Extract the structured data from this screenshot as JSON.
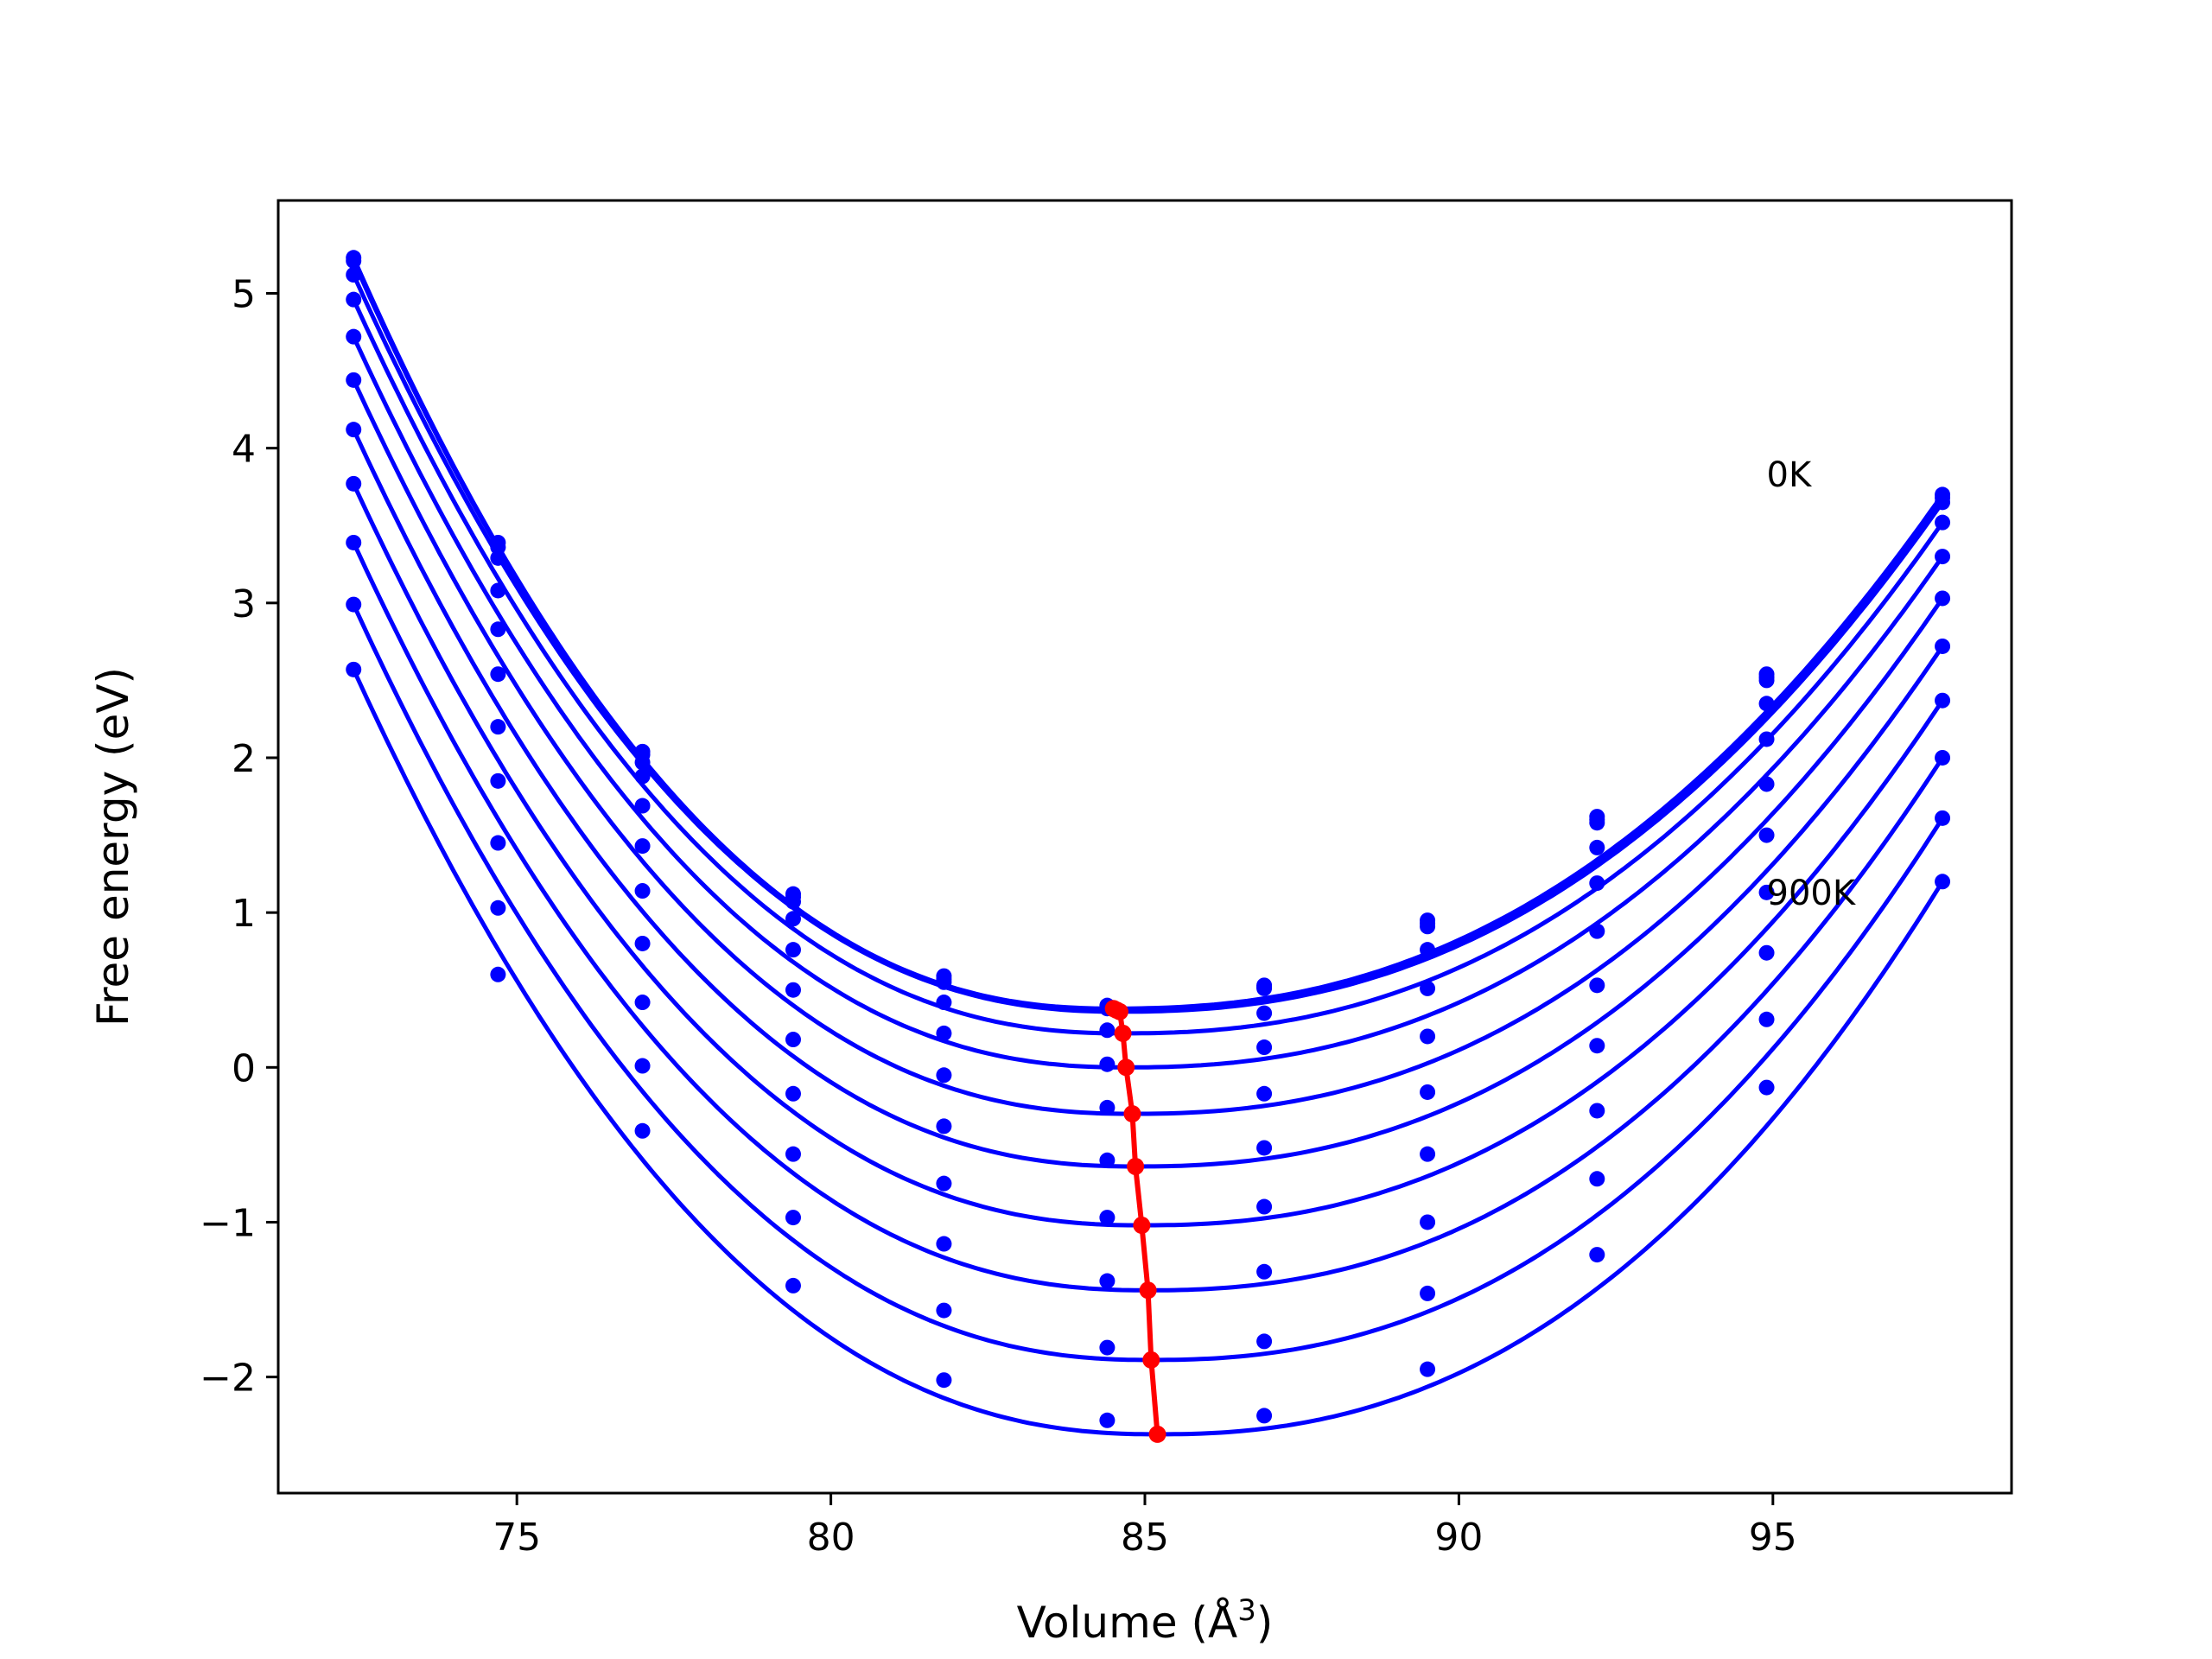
{
  "chart_data": {
    "type": "line",
    "xlabel": "Volume (Å",
    "xlabel_sup": "3",
    "xlabel_end": ")",
    "ylabel": "Free energy (eV)",
    "xlim": [
      71.2,
      98.8
    ],
    "ylim": [
      -2.75,
      5.6
    ],
    "x_ticks": [
      75,
      80,
      85,
      90,
      95
    ],
    "y_ticks": [
      5,
      4,
      3,
      2,
      1,
      0,
      -1,
      -2
    ],
    "y_tick_labels": [
      "5",
      "4",
      "3",
      "2",
      "1",
      "0",
      "−1",
      "−2"
    ],
    "annotations": [
      {
        "text": "0K",
        "x": 94.9,
        "y": 3.83
      },
      {
        "text": "900K",
        "x": 94.9,
        "y": 1.13
      }
    ],
    "volumes": [
      72.4,
      74.7,
      77.0,
      79.4,
      81.8,
      84.4,
      86.9,
      89.5,
      92.2,
      94.9,
      97.7
    ],
    "series": [
      {
        "v0": 84.5,
        "fmin": 0.38,
        "f_low": 5.23,
        "f_high": 3.7,
        "points": [
          5.23,
          3.39,
          2.04,
          1.12,
          0.59,
          0.4,
          0.53,
          0.95,
          1.62,
          2.54,
          3.7
        ]
      },
      {
        "v0": 84.55,
        "fmin": 0.37,
        "f_low": 5.21,
        "f_high": 3.68,
        "points": [
          5.21,
          3.36,
          2.02,
          1.1,
          0.57,
          0.39,
          0.52,
          0.93,
          1.6,
          2.52,
          3.68
        ]
      },
      {
        "v0": 84.6,
        "fmin": 0.36,
        "f_low": 5.12,
        "f_high": 3.65,
        "points": [
          5.12,
          3.29,
          1.97,
          1.07,
          0.55,
          0.38,
          0.51,
          0.91,
          1.58,
          2.5,
          3.65
        ]
      },
      {
        "v0": 84.65,
        "fmin": 0.22,
        "f_low": 4.96,
        "f_high": 3.52,
        "points": [
          4.96,
          3.08,
          1.88,
          0.96,
          0.42,
          0.24,
          0.35,
          0.76,
          1.42,
          2.35,
          3.52
        ]
      },
      {
        "v0": 84.7,
        "fmin": 0.0,
        "f_low": 4.72,
        "f_high": 3.3,
        "points": [
          4.72,
          2.83,
          1.69,
          0.76,
          0.22,
          0.02,
          0.13,
          0.51,
          1.19,
          2.12,
          3.3
        ]
      },
      {
        "v0": 84.8,
        "fmin": -0.3,
        "f_low": 4.44,
        "f_high": 3.03,
        "points": [
          4.44,
          2.54,
          1.43,
          0.5,
          -0.05,
          -0.26,
          -0.17,
          0.2,
          0.88,
          1.83,
          3.03
        ]
      },
      {
        "v0": 84.85,
        "fmin": -0.64,
        "f_low": 4.12,
        "f_high": 2.72,
        "points": [
          4.12,
          2.2,
          1.14,
          0.18,
          -0.38,
          -0.6,
          -0.52,
          -0.16,
          0.53,
          1.5,
          2.72
        ]
      },
      {
        "v0": 84.95,
        "fmin": -1.02,
        "f_low": 3.77,
        "f_high": 2.37,
        "points": [
          3.77,
          1.85,
          0.8,
          -0.17,
          -0.75,
          -0.97,
          -0.9,
          -0.56,
          0.14,
          1.13,
          2.37
        ]
      },
      {
        "v0": 85.05,
        "fmin": -1.44,
        "f_low": 3.39,
        "f_high": 2.0,
        "points": [
          3.39,
          1.45,
          0.42,
          -0.56,
          -1.14,
          -1.38,
          -1.32,
          -1.0,
          -0.28,
          0.74,
          2.0
        ]
      },
      {
        "v0": 85.1,
        "fmin": -1.89,
        "f_low": 2.99,
        "f_high": 1.61,
        "points": [
          2.99,
          1.03,
          0.01,
          -0.97,
          -1.57,
          -1.81,
          -1.77,
          -1.46,
          -0.72,
          0.31,
          1.61
        ]
      },
      {
        "v0": 85.2,
        "fmin": -2.37,
        "f_low": 2.57,
        "f_high": 1.2,
        "points": [
          2.57,
          0.6,
          -0.41,
          -1.41,
          -2.02,
          -2.28,
          -2.25,
          -1.95,
          -1.21,
          -0.13,
          1.2
        ]
      }
    ],
    "minima_series": {
      "name": "minima",
      "color": "#ff0000",
      "x": [
        84.5,
        84.55,
        84.6,
        84.65,
        84.7,
        84.8,
        84.85,
        84.95,
        85.05,
        85.1,
        85.2
      ],
      "y": [
        0.38,
        0.37,
        0.36,
        0.22,
        0.0,
        -0.3,
        -0.64,
        -1.02,
        -1.44,
        -1.89,
        -2.37
      ]
    },
    "curve_color": "#0000ff",
    "grid": false
  }
}
